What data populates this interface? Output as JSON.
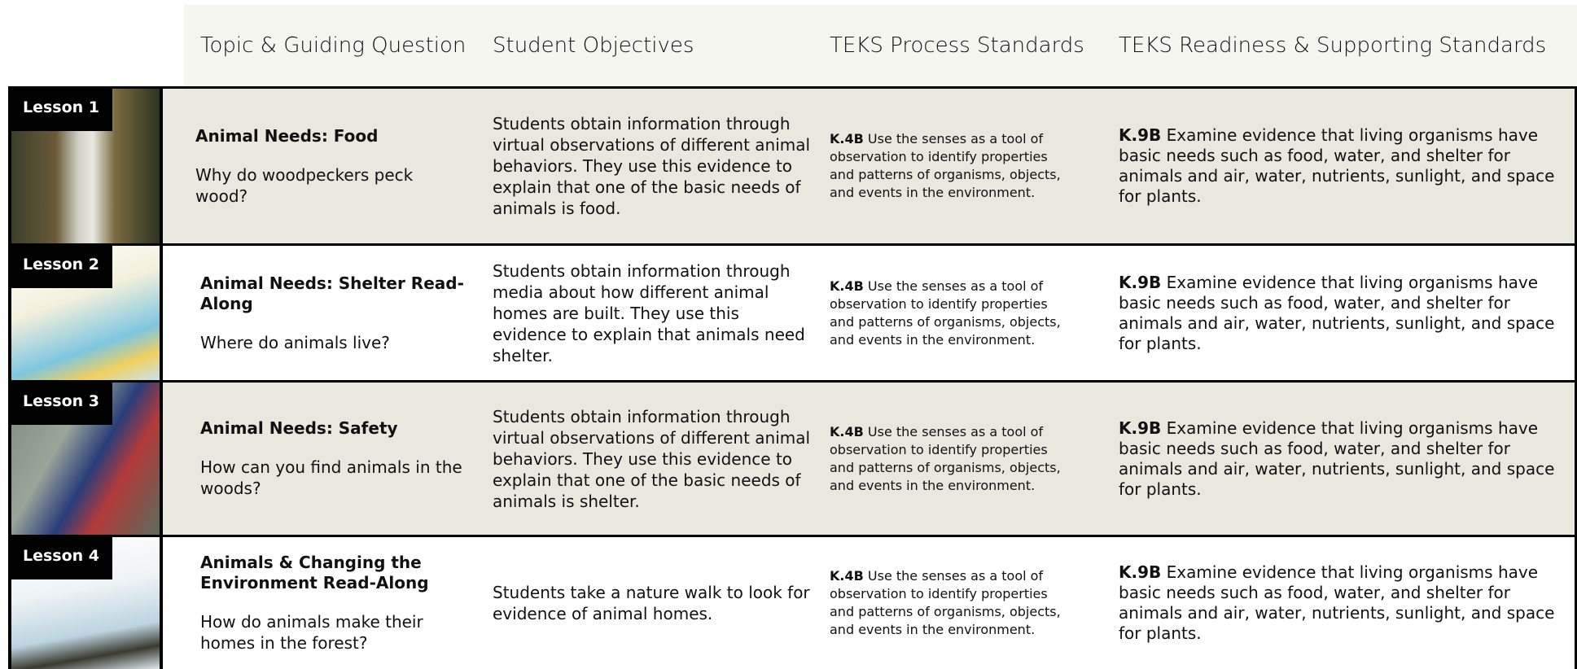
{
  "header": {
    "columns": [
      "Topic & Guiding Question",
      "Student Objectives",
      "TEKS Process Standards",
      "TEKS Readiness & Supporting Standards"
    ]
  },
  "lessons": [
    {
      "label": "Lesson 1",
      "topic": "Animal Needs: Food",
      "question": "Why do woodpeckers peck wood?",
      "objective": "Students obtain information through virtual observations of different animal behaviors. They use this evidence to explain that one of the basic needs of animals is food.",
      "process_code": "K.4B",
      "process_text": "Use the senses as a tool of observation to identify properties and patterns of organisms, objects, and events in the environment.",
      "readiness_code": "K.9B",
      "readiness_text": "Examine evidence that living organisms have basic needs such as food, water, and shelter for animals and air, water, nutrients, sunlight, and space for plants."
    },
    {
      "label": "Lesson 2",
      "topic": "Animal Needs: Shelter Read-Along",
      "question": "Where do animals live?",
      "objective": "Students obtain information through media about how different animal homes are built. They use this evidence to explain that animals need shelter.",
      "process_code": "K.4B",
      "process_text": "Use the senses as a tool of observation to identify properties and patterns of organisms, objects, and events in the environment.",
      "readiness_code": "K.9B",
      "readiness_text": "Examine evidence that living organisms have basic needs such as food, water, and shelter for animals and air, water, nutrients, sunlight, and space for plants."
    },
    {
      "label": "Lesson 3",
      "topic": "Animal Needs: Safety",
      "question": "How can you find animals in the woods?",
      "objective": "Students obtain information through virtual observations of different animal behaviors. They use this evidence to explain that one of the basic needs of animals is shelter.",
      "process_code": "K.4B",
      "process_text": "Use the senses as a tool of observation to identify properties and patterns of organisms, objects, and events in the environment.",
      "readiness_code": "K.9B",
      "readiness_text": "Examine evidence that living organisms have basic needs such as food, water, and shelter for animals and air, water, nutrients, sunlight, and space for plants."
    },
    {
      "label": "Lesson 4",
      "topic": "Animals & Changing the Environment Read-Along",
      "question": "How do animals make their homes in the forest?",
      "objective": "Students take a nature walk to look for evidence of animal homes.",
      "process_code": "K.4B",
      "process_text": "Use the senses as a tool of observation to identify properties and patterns of organisms, objects, and events in the environment.",
      "readiness_code": "K.9B",
      "readiness_text": "Examine evidence that living organisms have basic needs such as food, water, and shelter for animals and air, water, nutrients, sunlight, and space for plants."
    }
  ]
}
